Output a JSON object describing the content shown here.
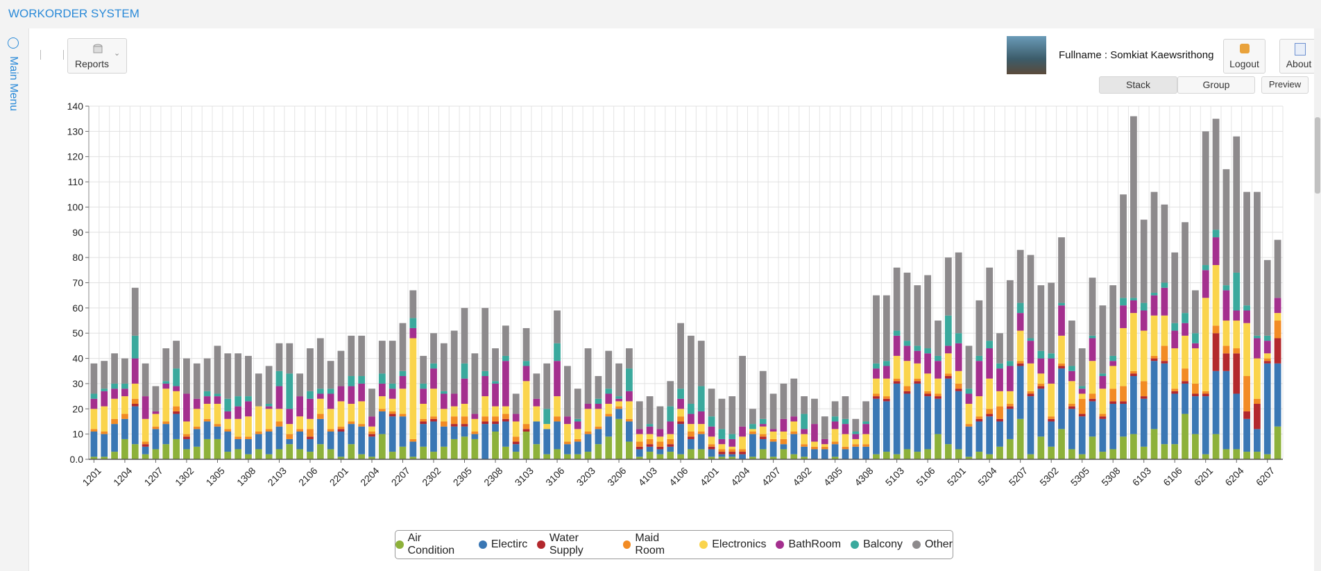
{
  "header": {
    "title": "WORKORDER SYSTEM"
  },
  "sidebar": {
    "label": "Main Menu"
  },
  "toolbar": {
    "reports": "Reports",
    "fullname": "Fullname : Somkiat Kaewsrithong",
    "logout": "Logout",
    "about": "About"
  },
  "chart_controls": {
    "stack": "Stack",
    "group": "Group",
    "preview": "Preview"
  },
  "chart_data": {
    "type": "bar",
    "stacked": true,
    "grid": true,
    "legend": "bottom",
    "ylim": [
      0,
      140
    ],
    "yticks": [
      {
        "value": 0,
        "label": "0.0"
      },
      10,
      20,
      30,
      40,
      50,
      60,
      70,
      80,
      90,
      100,
      110,
      120,
      130,
      140
    ],
    "categories": [
      "1201",
      null,
      null,
      "1204",
      null,
      null,
      "1207",
      null,
      null,
      "1302",
      null,
      null,
      "1305",
      null,
      null,
      "1308",
      null,
      null,
      "2103",
      null,
      null,
      "2106",
      null,
      null,
      "2201",
      null,
      null,
      "2204",
      null,
      null,
      "2207",
      null,
      null,
      "2302",
      null,
      null,
      "2305",
      null,
      null,
      "2308",
      null,
      null,
      "3103",
      null,
      null,
      "3106",
      null,
      null,
      "3203",
      null,
      null,
      "3206",
      null,
      null,
      "4103",
      null,
      null,
      "4106",
      null,
      null,
      "4201",
      null,
      null,
      "4204",
      null,
      null,
      "4207",
      null,
      null,
      "4302",
      null,
      null,
      "4305",
      null,
      null,
      "4308",
      null,
      null,
      "5103",
      null,
      null,
      "5106",
      null,
      null,
      "5201",
      null,
      null,
      "5204",
      null,
      null,
      "5207",
      null,
      null,
      "5302",
      null,
      null,
      "5305",
      null,
      null,
      "5308",
      null,
      null,
      "6103",
      null,
      null,
      "6106",
      null,
      null,
      "6201",
      null,
      null,
      "6204",
      null,
      null,
      "6207",
      null
    ],
    "series": [
      {
        "name": "Air Condition",
        "color": "#8db13a",
        "values": [
          1,
          1,
          3,
          8,
          6,
          2,
          4,
          6,
          8,
          4,
          5,
          8,
          8,
          3,
          4,
          2,
          4,
          2,
          4,
          6,
          4,
          3,
          6,
          4,
          1,
          6,
          2,
          1,
          10,
          3,
          5,
          1,
          5,
          3,
          5,
          8,
          9,
          8,
          0,
          11,
          5,
          3,
          11,
          6,
          2,
          4,
          2,
          2,
          3,
          6,
          9,
          16,
          7,
          1,
          3,
          2,
          3,
          2,
          4,
          4,
          1,
          1,
          1,
          0,
          1,
          4,
          1,
          4,
          2,
          1,
          0,
          0,
          1,
          0,
          0,
          0,
          2,
          3,
          2,
          4,
          3,
          4,
          10,
          6,
          4,
          1,
          3,
          2,
          5,
          8,
          16,
          2,
          9,
          5,
          12,
          4,
          2,
          9,
          3,
          4,
          9,
          10,
          5,
          12,
          6,
          6,
          18,
          10,
          2,
          10,
          4,
          4,
          3,
          3,
          2,
          13
        ]
      },
      {
        "name": "Electirc",
        "color": "#3a77b4",
        "values": [
          10,
          9,
          11,
          8,
          15,
          3,
          8,
          8,
          10,
          4,
          7,
          7,
          5,
          8,
          4,
          6,
          6,
          9,
          9,
          2,
          7,
          5,
          10,
          7,
          10,
          8,
          11,
          8,
          9,
          14,
          12,
          6,
          9,
          12,
          8,
          5,
          4,
          2,
          14,
          3,
          10,
          3,
          0,
          9,
          10,
          11,
          4,
          5,
          7,
          6,
          8,
          4,
          8,
          3,
          2,
          2,
          2,
          12,
          4,
          6,
          3,
          1,
          1,
          2,
          9,
          4,
          6,
          2,
          8,
          4,
          4,
          4,
          5,
          4,
          5,
          5,
          22,
          20,
          28,
          22,
          27,
          21,
          14,
          26,
          23,
          12,
          12,
          15,
          10,
          12,
          21,
          23,
          19,
          10,
          24,
          16,
          15,
          14,
          13,
          18,
          13,
          23,
          19,
          27,
          32,
          20,
          12,
          15,
          23,
          25,
          31,
          22,
          13,
          9,
          36,
          25
        ]
      },
      {
        "name": "Water Supply",
        "color": "#b3282d",
        "values": [
          0,
          0,
          0,
          0,
          1,
          1,
          0,
          0,
          1,
          1,
          0,
          0,
          0,
          0,
          0,
          0,
          0,
          0,
          0,
          0,
          0,
          1,
          0,
          0,
          1,
          0,
          0,
          1,
          0,
          1,
          0,
          0,
          1,
          1,
          0,
          1,
          1,
          0,
          1,
          1,
          1,
          1,
          1,
          0,
          0,
          0,
          0,
          0,
          0,
          0,
          0,
          0,
          0,
          1,
          1,
          1,
          1,
          1,
          1,
          0,
          1,
          1,
          1,
          1,
          0,
          1,
          0,
          0,
          0,
          0,
          0,
          0,
          0,
          0,
          0,
          0,
          1,
          1,
          1,
          1,
          1,
          1,
          1,
          1,
          1,
          0,
          1,
          1,
          1,
          1,
          1,
          1,
          1,
          1,
          1,
          1,
          1,
          1,
          1,
          1,
          1,
          1,
          1,
          1,
          1,
          1,
          1,
          1,
          1,
          15,
          7,
          16,
          3,
          10,
          1,
          10
        ]
      },
      {
        "name": "Maid Room",
        "color": "#f28b24",
        "values": [
          1,
          1,
          2,
          2,
          2,
          1,
          1,
          1,
          2,
          1,
          1,
          1,
          1,
          1,
          1,
          1,
          1,
          1,
          2,
          2,
          1,
          3,
          2,
          1,
          1,
          1,
          1,
          1,
          1,
          1,
          1,
          1,
          1,
          1,
          2,
          3,
          3,
          1,
          2,
          2,
          2,
          2,
          2,
          0,
          0,
          2,
          1,
          1,
          1,
          1,
          1,
          1,
          1,
          2,
          2,
          2,
          2,
          2,
          2,
          1,
          1,
          1,
          1,
          1,
          1,
          1,
          1,
          2,
          1,
          1,
          1,
          1,
          1,
          1,
          1,
          1,
          1,
          1,
          1,
          2,
          1,
          1,
          1,
          1,
          2,
          1,
          1,
          2,
          5,
          1,
          1,
          1,
          1,
          1,
          1,
          1,
          6,
          2,
          1,
          5,
          6,
          1,
          6,
          1,
          6,
          1,
          5,
          4,
          1,
          3,
          3,
          2,
          14,
          2,
          1,
          7
        ]
      },
      {
        "name": "Electronics",
        "color": "#fad44c",
        "values": [
          8,
          10,
          8,
          7,
          6,
          9,
          5,
          13,
          6,
          5,
          7,
          6,
          8,
          4,
          7,
          8,
          10,
          8,
          5,
          4,
          5,
          4,
          6,
          8,
          10,
          7,
          9,
          2,
          5,
          5,
          10,
          40,
          6,
          11,
          5,
          4,
          5,
          5,
          8,
          4,
          3,
          6,
          17,
          6,
          2,
          8,
          7,
          4,
          9,
          7,
          4,
          2,
          7,
          3,
          2,
          2,
          2,
          3,
          3,
          3,
          3,
          2,
          1,
          5,
          1,
          3,
          3,
          3,
          4,
          4,
          2,
          1,
          5,
          5,
          2,
          4,
          6,
          7,
          9,
          10,
          6,
          7,
          6,
          8,
          5,
          8,
          8,
          12,
          6,
          5,
          12,
          11,
          4,
          13,
          11,
          9,
          2,
          13,
          10,
          9,
          23,
          23,
          20,
          16,
          12,
          16,
          13,
          14,
          37,
          24,
          10,
          11,
          21,
          16,
          2,
          3
        ]
      },
      {
        "name": "BathRoom",
        "color": "#a42f8e",
        "values": [
          4,
          6,
          4,
          3,
          10,
          9,
          1,
          2,
          2,
          11,
          4,
          3,
          3,
          3,
          5,
          6,
          0,
          1,
          9,
          6,
          8,
          8,
          2,
          6,
          6,
          7,
          7,
          4,
          5,
          4,
          5,
          4,
          6,
          8,
          6,
          5,
          10,
          2,
          8,
          9,
          18,
          3,
          6,
          3,
          0,
          14,
          3,
          3,
          2,
          2,
          4,
          1,
          4,
          2,
          3,
          3,
          5,
          4,
          4,
          5,
          4,
          2,
          3,
          4,
          0,
          1,
          1,
          5,
          2,
          2,
          7,
          2,
          3,
          4,
          2,
          4,
          4,
          5,
          8,
          6,
          5,
          8,
          7,
          3,
          11,
          4,
          14,
          12,
          9,
          10,
          7,
          9,
          6,
          10,
          12,
          4,
          2,
          9,
          5,
          2,
          9,
          5,
          8,
          8,
          11,
          7,
          5,
          2,
          11,
          11,
          12,
          4,
          5,
          8,
          5,
          6
        ]
      },
      {
        "name": "Balcony",
        "color": "#3aa99d",
        "values": [
          2,
          1,
          2,
          2,
          9,
          0,
          0,
          1,
          7,
          0,
          0,
          2,
          1,
          5,
          4,
          2,
          0,
          1,
          6,
          14,
          0,
          3,
          2,
          2,
          0,
          4,
          3,
          0,
          4,
          2,
          2,
          4,
          2,
          2,
          1,
          0,
          6,
          0,
          2,
          1,
          2,
          0,
          2,
          0,
          6,
          7,
          0,
          1,
          0,
          2,
          2,
          1,
          9,
          0,
          1,
          0,
          6,
          4,
          4,
          10,
          4,
          4,
          2,
          0,
          2,
          2,
          0,
          0,
          0,
          6,
          0,
          0,
          2,
          2,
          1,
          1,
          2,
          2,
          2,
          2,
          2,
          2,
          2,
          12,
          4,
          2,
          2,
          3,
          2,
          2,
          4,
          1,
          3,
          2,
          1,
          2,
          1,
          1,
          1,
          2,
          3,
          1,
          3,
          1,
          2,
          3,
          4,
          4,
          2,
          3,
          2,
          15,
          2,
          1,
          2,
          0
        ]
      },
      {
        "name": "Other",
        "color": "#8d8a8c",
        "values": [
          12,
          11,
          12,
          10,
          19,
          13,
          10,
          13,
          11,
          14,
          14,
          13,
          19,
          18,
          17,
          16,
          13,
          15,
          11,
          12,
          9,
          17,
          20,
          11,
          14,
          16,
          16,
          11,
          13,
          17,
          19,
          11,
          11,
          12,
          19,
          25,
          22,
          24,
          25,
          13,
          12,
          8,
          13,
          10,
          18,
          13,
          20,
          12,
          22,
          9,
          15,
          13,
          8,
          11,
          11,
          9,
          10,
          26,
          27,
          18,
          11,
          12,
          15,
          28,
          6,
          19,
          14,
          14,
          15,
          7,
          10,
          9,
          6,
          9,
          5,
          8,
          27,
          26,
          25,
          27,
          24,
          29,
          14,
          23,
          32,
          17,
          22,
          29,
          12,
          32,
          21,
          33,
          26,
          28,
          26,
          18,
          15,
          23,
          27,
          28,
          41,
          72,
          33,
          40,
          31,
          28,
          36,
          17,
          53,
          44,
          46,
          54,
          45,
          57,
          30,
          23
        ]
      }
    ]
  }
}
